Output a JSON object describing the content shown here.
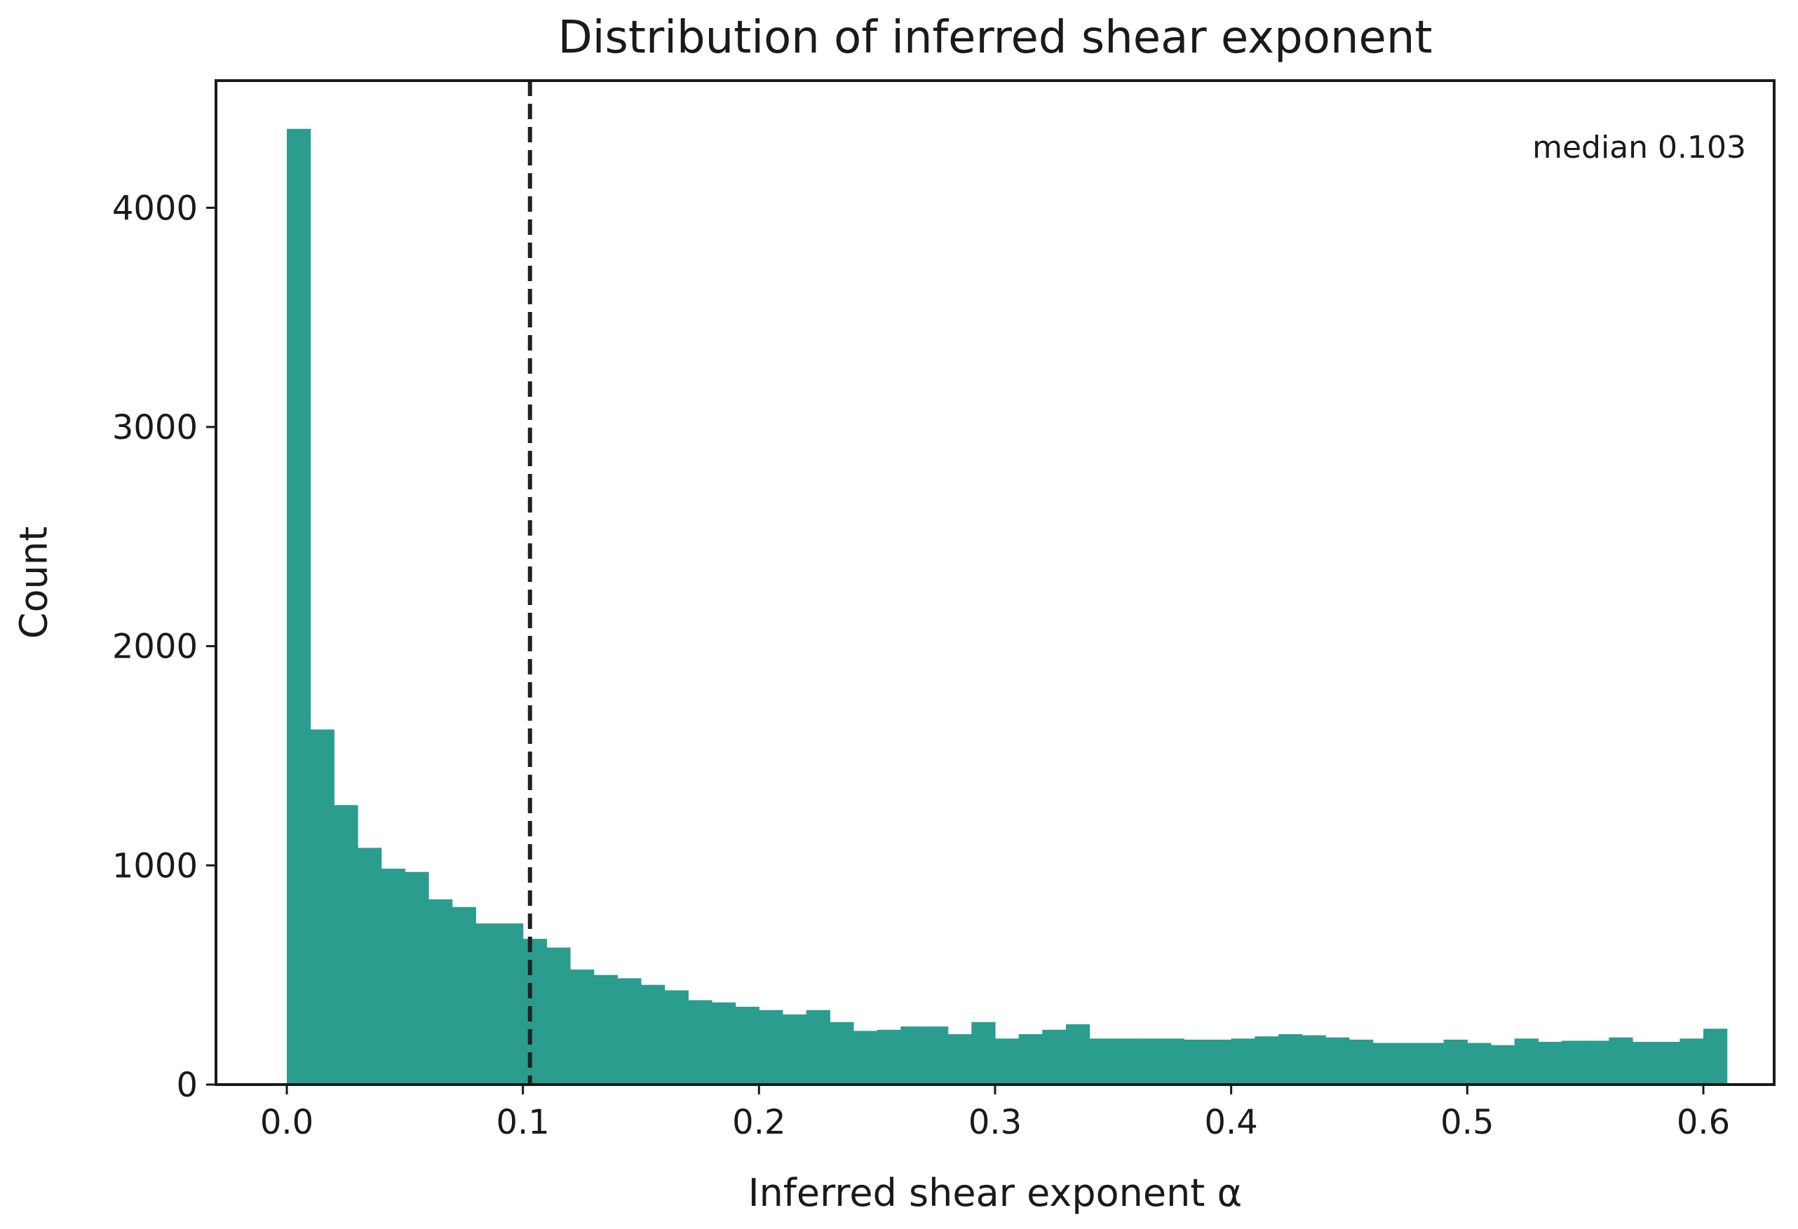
{
  "chart_data": {
    "type": "bar",
    "title": "Distribution of inferred shear exponent",
    "xlabel": "Inferred shear exponent α",
    "ylabel": "Count",
    "xlim": [
      -0.03,
      0.63
    ],
    "ylim": [
      0,
      4580
    ],
    "x_ticks": [
      0.0,
      0.1,
      0.2,
      0.3,
      0.4,
      0.5,
      0.6
    ],
    "x_tick_labels": [
      "0.0",
      "0.1",
      "0.2",
      "0.3",
      "0.4",
      "0.5",
      "0.6"
    ],
    "y_ticks": [
      0,
      1000,
      2000,
      3000,
      4000
    ],
    "y_tick_labels": [
      "0",
      "1000",
      "2000",
      "3000",
      "4000"
    ],
    "bin_start": 0.0,
    "bin_width": 0.01,
    "values": [
      4360,
      1620,
      1275,
      1080,
      985,
      970,
      845,
      810,
      735,
      735,
      665,
      625,
      525,
      500,
      485,
      455,
      430,
      385,
      375,
      355,
      340,
      320,
      340,
      285,
      245,
      250,
      265,
      265,
      230,
      285,
      210,
      230,
      250,
      275,
      210,
      210,
      210,
      210,
      205,
      205,
      210,
      220,
      230,
      225,
      215,
      205,
      190,
      190,
      190,
      205,
      190,
      180,
      210,
      195,
      200,
      200,
      215,
      195,
      195,
      210,
      255
    ],
    "median": 0.103,
    "median_label": "median 0.103",
    "bar_color": "#2a9d8f",
    "median_line_color": "#222222",
    "grid": false
  }
}
